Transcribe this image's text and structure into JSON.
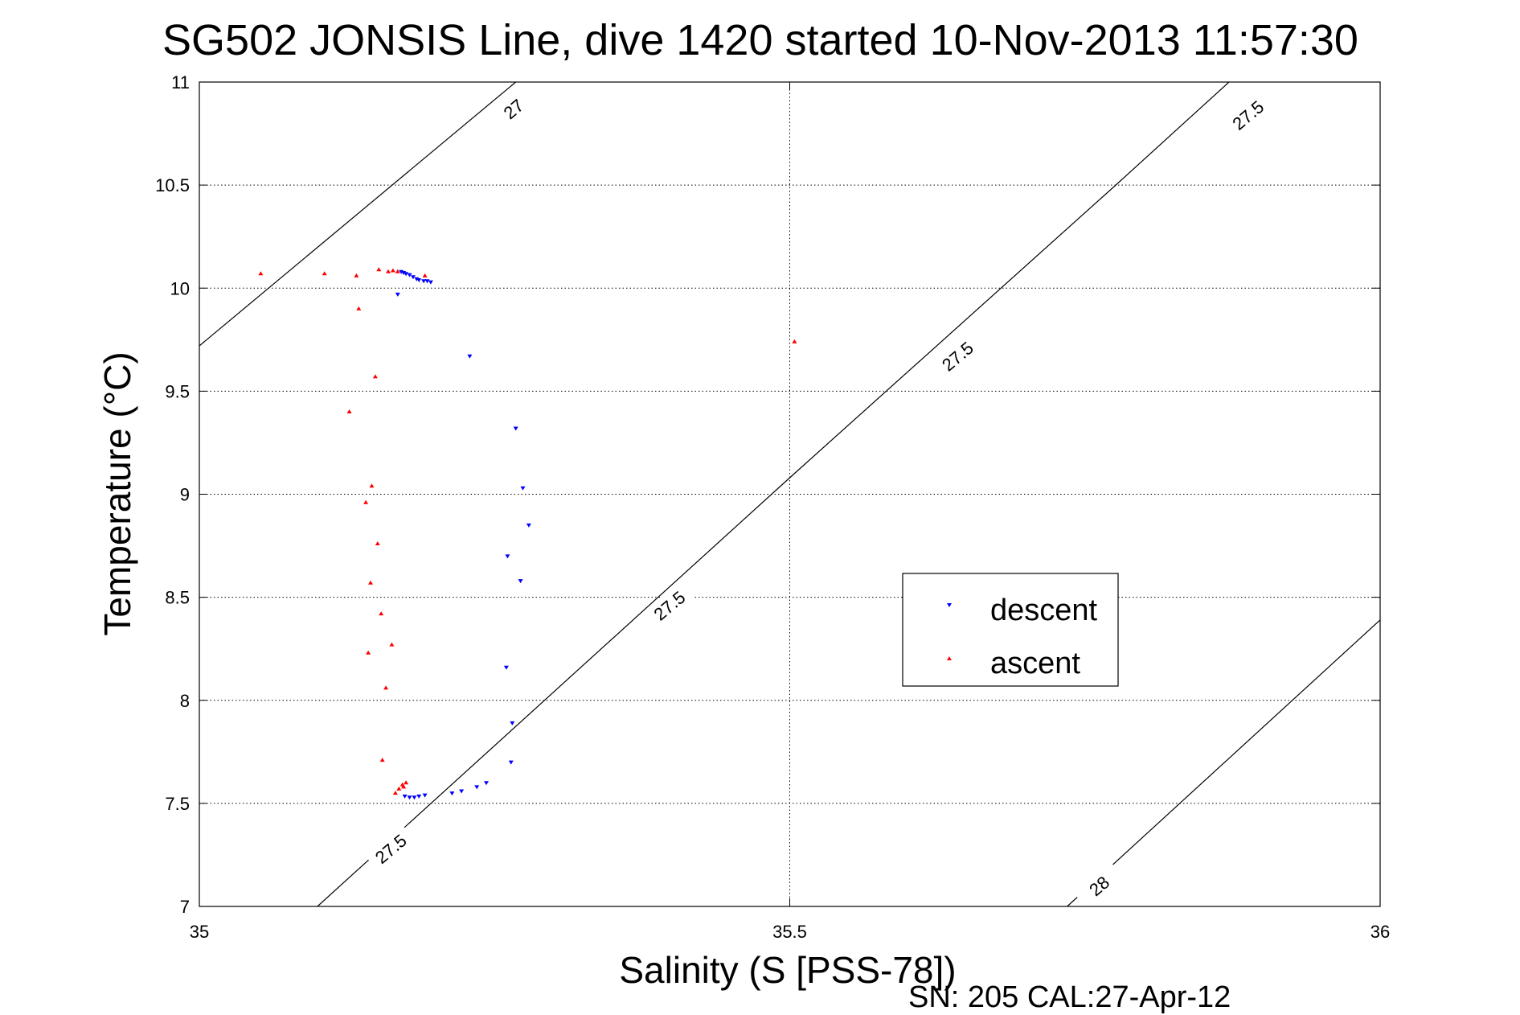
{
  "chart_data": {
    "type": "scatter",
    "title": "SG502 JONSIS Line, dive 1420 started 10-Nov-2013 11:57:30",
    "xlabel": "Salinity (S [PSS-78])",
    "ylabel": "Temperature (°C)",
    "footer": "SN: 205  CAL:27-Apr-12",
    "xlim": [
      35,
      36
    ],
    "ylim": [
      7,
      11
    ],
    "xticks": [
      35,
      35.5,
      36
    ],
    "yticks": [
      7,
      7.5,
      8,
      8.5,
      9,
      9.5,
      10,
      10.5,
      11
    ],
    "xtick_labels": [
      "35",
      "35.5",
      "36"
    ],
    "ytick_labels": [
      "7",
      "7.5",
      "8",
      "8.5",
      "9",
      "9.5",
      "10",
      "10.5",
      "11"
    ],
    "grid": true,
    "legend_position": "center-right",
    "contours": [
      {
        "label": "27",
        "points": [
          [
            35.0,
            9.72
          ],
          [
            35.268,
            11.0
          ]
        ]
      },
      {
        "label": "27.5",
        "points": [
          [
            35.1,
            7.0
          ],
          [
            35.5,
            9.08
          ],
          [
            35.78,
            10.52
          ],
          [
            35.872,
            11.0
          ]
        ]
      },
      {
        "label": "28",
        "points": [
          [
            35.735,
            7.0
          ],
          [
            36.0,
            8.39
          ]
        ]
      }
    ],
    "contour_labels": [
      {
        "text": "27",
        "x": 35.266,
        "y": 10.87
      },
      {
        "text": "27.5",
        "x": 35.888,
        "y": 10.84
      },
      {
        "text": "27.5",
        "x": 35.642,
        "y": 9.67
      },
      {
        "text": "27.5",
        "x": 35.398,
        "y": 8.46
      },
      {
        "text": "27.5",
        "x": 35.162,
        "y": 7.28
      },
      {
        "text": "28",
        "x": 35.762,
        "y": 7.1
      }
    ],
    "series": [
      {
        "name": "descent",
        "color": "#0000ff",
        "marker": "triangle-down",
        "points": [
          [
            35.171,
            10.08
          ],
          [
            35.173,
            10.075
          ],
          [
            35.175,
            10.07
          ],
          [
            35.178,
            10.065
          ],
          [
            35.181,
            10.055
          ],
          [
            35.184,
            10.045
          ],
          [
            35.186,
            10.04
          ],
          [
            35.19,
            10.035
          ],
          [
            35.193,
            10.035
          ],
          [
            35.196,
            10.03
          ],
          [
            35.168,
            9.97
          ],
          [
            35.229,
            9.67
          ],
          [
            35.268,
            9.32
          ],
          [
            35.274,
            9.03
          ],
          [
            35.279,
            8.85
          ],
          [
            35.261,
            8.7
          ],
          [
            35.272,
            8.58
          ],
          [
            35.26,
            8.16
          ],
          [
            35.265,
            7.89
          ],
          [
            35.264,
            7.7
          ],
          [
            35.243,
            7.6
          ],
          [
            35.235,
            7.58
          ],
          [
            35.222,
            7.56
          ],
          [
            35.214,
            7.55
          ],
          [
            35.191,
            7.54
          ],
          [
            35.186,
            7.535
          ],
          [
            35.182,
            7.53
          ],
          [
            35.178,
            7.53
          ],
          [
            35.174,
            7.535
          ]
        ]
      },
      {
        "name": "ascent",
        "color": "#ff0000",
        "marker": "triangle-up",
        "points": [
          [
            35.106,
            10.07
          ],
          [
            35.052,
            10.07
          ],
          [
            35.133,
            10.06
          ],
          [
            35.152,
            10.09
          ],
          [
            35.16,
            10.08
          ],
          [
            35.168,
            10.08
          ],
          [
            35.164,
            10.085
          ],
          [
            35.191,
            10.06
          ],
          [
            35.135,
            9.9
          ],
          [
            35.149,
            9.57
          ],
          [
            35.127,
            9.4
          ],
          [
            35.146,
            9.04
          ],
          [
            35.141,
            8.96
          ],
          [
            35.151,
            8.76
          ],
          [
            35.145,
            8.57
          ],
          [
            35.154,
            8.42
          ],
          [
            35.163,
            8.27
          ],
          [
            35.143,
            8.23
          ],
          [
            35.158,
            8.06
          ],
          [
            35.155,
            7.71
          ],
          [
            35.175,
            7.6
          ],
          [
            35.172,
            7.59
          ],
          [
            35.169,
            7.57
          ],
          [
            35.173,
            7.58
          ],
          [
            35.166,
            7.55
          ],
          [
            35.504,
            9.74
          ]
        ]
      }
    ]
  }
}
